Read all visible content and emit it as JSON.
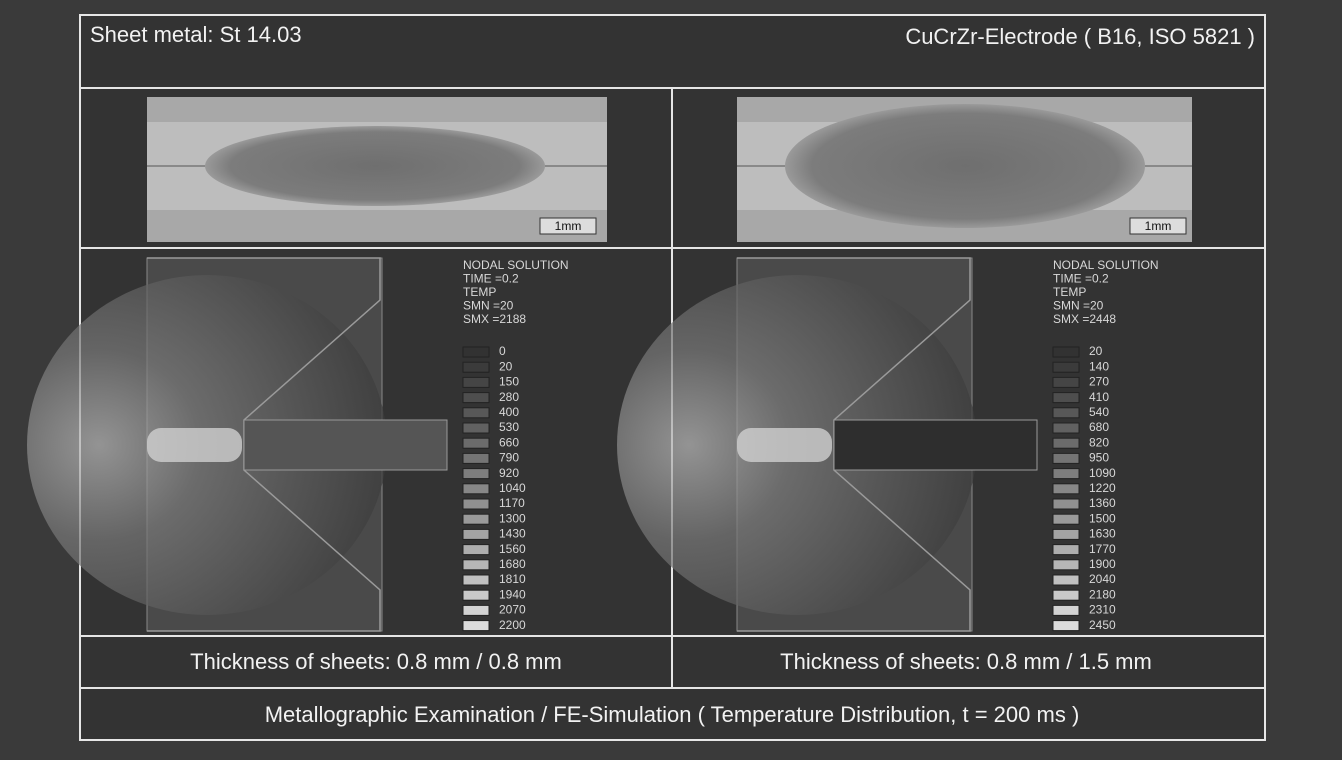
{
  "header": {
    "left": "Sheet metal: St 14.03",
    "right": "CuCrZr-Electrode ( B16, ISO 5821 )"
  },
  "panels": [
    {
      "scale_bar": "1mm",
      "simulation": {
        "lines": [
          "NODAL SOLUTION",
          "TIME =0.2",
          "TEMP",
          "SMN =20",
          "SMX =2188"
        ],
        "legend": [
          0,
          20,
          150,
          280,
          400,
          530,
          660,
          790,
          920,
          1040,
          1170,
          1300,
          1430,
          1560,
          1680,
          1810,
          1940,
          2070,
          2200
        ]
      },
      "caption": "Thickness of sheets: 0.8 mm / 0.8 mm"
    },
    {
      "scale_bar": "1mm",
      "simulation": {
        "lines": [
          "NODAL SOLUTION",
          "TIME =0.2",
          "TEMP",
          "SMN =20",
          "SMX =2448"
        ],
        "legend": [
          20,
          140,
          270,
          410,
          540,
          680,
          820,
          950,
          1090,
          1220,
          1360,
          1500,
          1630,
          1770,
          1900,
          2040,
          2180,
          2310,
          2450
        ]
      },
      "caption": "Thickness of sheets: 0.8 mm / 1.5 mm"
    }
  ],
  "footer": "Metallographic Examination / FE-Simulation ( Temperature Distribution, t = 200 ms )"
}
